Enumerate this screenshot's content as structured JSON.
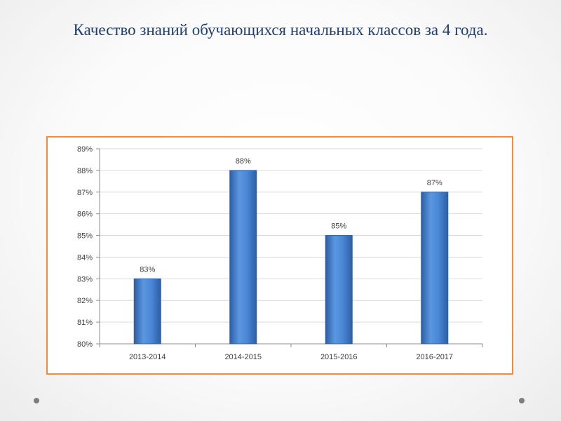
{
  "slide": {
    "title": "Качество знаний обучающихся начальных классов за 4 года."
  },
  "chart_data": {
    "type": "bar",
    "title": "",
    "xlabel": "",
    "ylabel": "",
    "categories": [
      "2013-2014",
      "2014-2015",
      "2015-2016",
      "2016-2017"
    ],
    "values": [
      83,
      88,
      85,
      87
    ],
    "value_labels": [
      "83%",
      "88%",
      "85%",
      "87%"
    ],
    "ylim": [
      80,
      89
    ],
    "yticks": [
      80,
      81,
      82,
      83,
      84,
      85,
      86,
      87,
      88,
      89
    ],
    "ytick_labels": [
      "80%",
      "81%",
      "82%",
      "83%",
      "84%",
      "85%",
      "86%",
      "87%",
      "88%",
      "89%"
    ],
    "grid": true,
    "legend": "none",
    "colors": {
      "bar": "#4a86d4",
      "bar_dark": "#2d5fa6",
      "frame_border": "#f28c3a",
      "title": "#1f3f6e",
      "gridline": "#d9d9d9"
    }
  }
}
